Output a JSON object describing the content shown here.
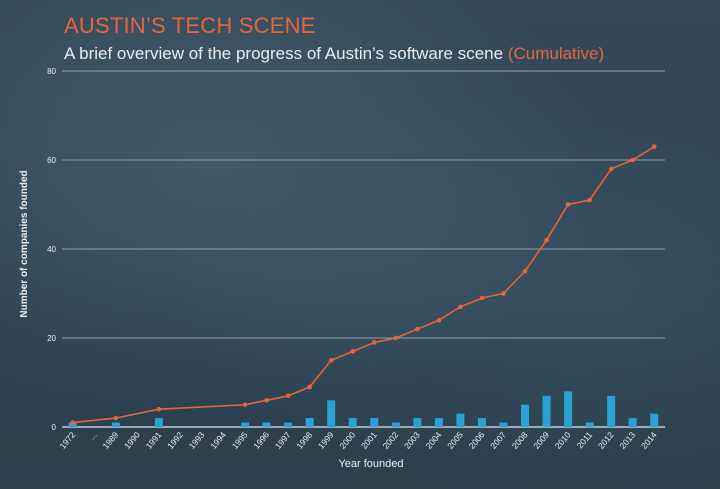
{
  "header": {
    "title": "AUSTIN’S TECH SCENE",
    "subtitle": "A brief overview of the progress of Austin’s software scene",
    "subtitle_accent": "(Cumulative)"
  },
  "colors": {
    "accent": "#e8643a",
    "bar": "#2aa3d4",
    "grid": "#c8d3d9",
    "text": "#e9eef1"
  },
  "chart_data": {
    "type": "bar+line",
    "xlabel": "Year founded",
    "ylabel": "Number of companies founded",
    "ylim": [
      0,
      80
    ],
    "yticks": [
      0,
      20,
      40,
      60,
      80
    ],
    "grid": true,
    "categories": [
      "1972",
      "...",
      "1989",
      "1990",
      "1991",
      "1992",
      "1993",
      "1994",
      "1995",
      "1996",
      "1997",
      "1998",
      "1999",
      "2000",
      "2001",
      "2002",
      "2003",
      "2004",
      "2005",
      "2006",
      "2007",
      "2008",
      "2009",
      "2010",
      "2011",
      "2012",
      "2013",
      "2014"
    ],
    "series": [
      {
        "type": "bar",
        "values": [
          1,
          0,
          1,
          0,
          2,
          0,
          0,
          0,
          1,
          1,
          1,
          2,
          6,
          2,
          2,
          1,
          2,
          2,
          3,
          2,
          1,
          5,
          7,
          8,
          1,
          7,
          2,
          3
        ]
      },
      {
        "type": "line",
        "values": [
          1,
          null,
          2,
          null,
          4,
          null,
          null,
          null,
          5,
          6,
          7,
          9,
          15,
          17,
          19,
          20,
          22,
          24,
          27,
          29,
          30,
          35,
          42,
          50,
          51,
          58,
          60,
          63
        ]
      }
    ]
  }
}
